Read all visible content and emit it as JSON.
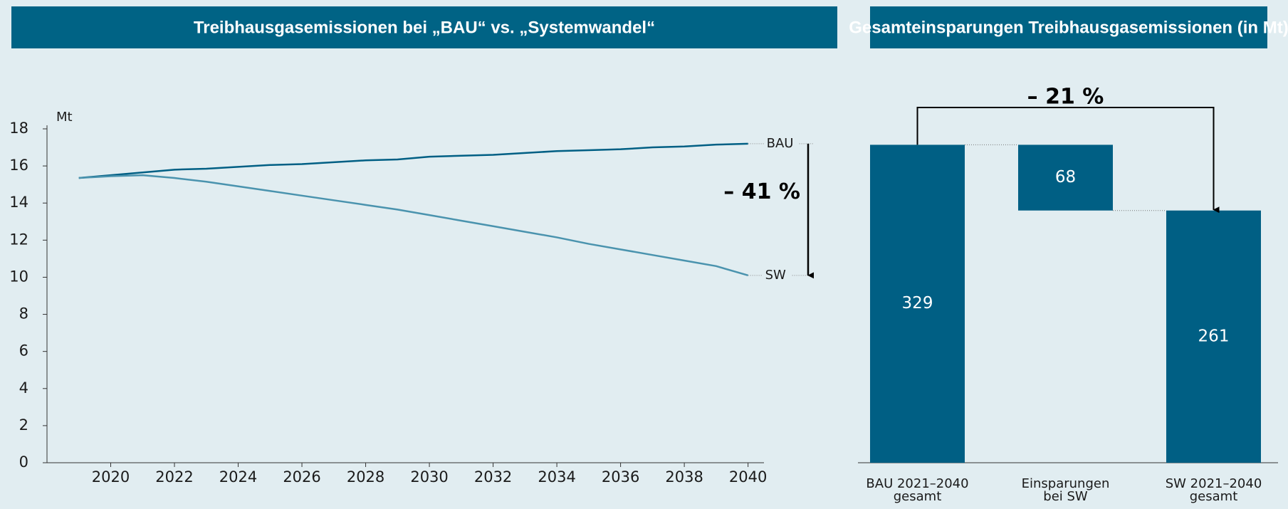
{
  "chart_data": [
    {
      "type": "line",
      "title": "Treibhausgasemissionen bei „BAU“ vs. „Systemwandel“",
      "y_label": "Mt",
      "x": [
        2019,
        2020,
        2021,
        2022,
        2023,
        2024,
        2025,
        2026,
        2027,
        2028,
        2029,
        2030,
        2031,
        2032,
        2033,
        2034,
        2035,
        2036,
        2037,
        2038,
        2039,
        2040
      ],
      "series": [
        {
          "name": "BAU",
          "color": "#005f84",
          "values": [
            15.35,
            15.5,
            15.65,
            15.8,
            15.85,
            15.95,
            16.05,
            16.1,
            16.2,
            16.3,
            16.35,
            16.5,
            16.55,
            16.6,
            16.7,
            16.8,
            16.85,
            16.9,
            17.0,
            17.05,
            17.15,
            17.2
          ]
        },
        {
          "name": "SW",
          "color": "#4a93ae",
          "values": [
            15.35,
            15.45,
            15.5,
            15.35,
            15.15,
            14.9,
            14.65,
            14.4,
            14.15,
            13.9,
            13.65,
            13.35,
            13.05,
            12.75,
            12.45,
            12.15,
            11.8,
            11.5,
            11.2,
            10.9,
            10.6,
            10.1
          ]
        }
      ],
      "xlim": [
        2018,
        2040.5
      ],
      "xticks": [
        2020,
        2022,
        2024,
        2026,
        2028,
        2030,
        2032,
        2034,
        2036,
        2038,
        2040
      ],
      "ylim": [
        0,
        18
      ],
      "yticks": [
        0,
        2,
        4,
        6,
        8,
        10,
        12,
        14,
        16,
        18
      ],
      "annotation": "– 41 %"
    },
    {
      "type": "waterfall",
      "title": "Gesamteinsparungen Treibhausgasemissionen (in Mt)",
      "categories": [
        [
          "BAU 2021–2040",
          "gesamt"
        ],
        [
          "Einsparungen",
          "bei SW"
        ],
        [
          "SW 2021–2040",
          "gesamt"
        ]
      ],
      "values": [
        329,
        68,
        261
      ],
      "color": "#005f84",
      "annotation": "– 21 %"
    }
  ]
}
